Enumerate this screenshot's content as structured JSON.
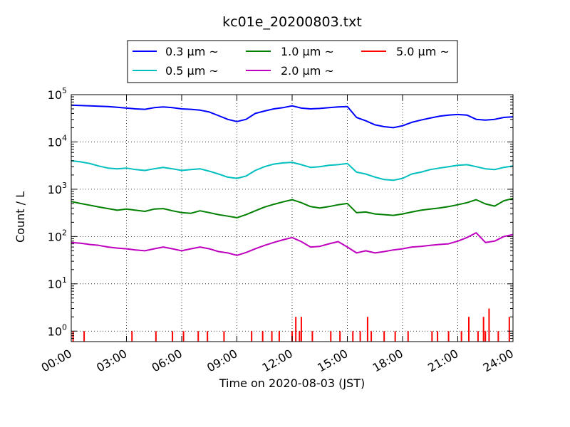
{
  "chart_data": {
    "type": "line",
    "title": "kc01e_20200803.txt",
    "xlabel": "Time on 2020-08-03 (JST)",
    "ylabel": "Count / L",
    "y_scale": "log",
    "ylim": [
      0.6,
      100000
    ],
    "xlim": [
      "00:00",
      "24:00"
    ],
    "x_ticks": [
      "00:00",
      "03:00",
      "06:00",
      "09:00",
      "12:00",
      "15:00",
      "18:00",
      "21:00",
      "24:00"
    ],
    "y_ticks": [
      {
        "value": 1,
        "base": "10",
        "exp": "0"
      },
      {
        "value": 10,
        "base": "10",
        "exp": "1"
      },
      {
        "value": 100,
        "base": "10",
        "exp": "2"
      },
      {
        "value": 1000,
        "base": "10",
        "exp": "3"
      },
      {
        "value": 10000,
        "base": "10",
        "exp": "4"
      },
      {
        "value": 100000,
        "base": "10",
        "exp": "5"
      }
    ],
    "grid": true,
    "legend_position": "top",
    "x_hours": [
      0,
      0.5,
      1,
      1.5,
      2,
      2.5,
      3,
      3.5,
      4,
      4.5,
      5,
      5.5,
      6,
      6.5,
      7,
      7.5,
      8,
      8.5,
      9,
      9.5,
      10,
      10.5,
      11,
      11.5,
      12,
      12.5,
      13,
      13.5,
      14,
      14.5,
      15,
      15.5,
      16,
      16.5,
      17,
      17.5,
      18,
      18.5,
      19,
      19.5,
      20,
      20.5,
      21,
      21.5,
      22,
      22.5,
      23,
      23.5,
      24
    ],
    "series": [
      {
        "name": "0.3 μm ~",
        "color": "#0000ff",
        "values": [
          60000,
          59000,
          58000,
          57000,
          56000,
          54000,
          52000,
          50000,
          49000,
          53000,
          55000,
          53000,
          50000,
          49000,
          47000,
          43000,
          36000,
          30000,
          27000,
          30000,
          40000,
          45000,
          50000,
          53000,
          58000,
          52000,
          50000,
          51000,
          53000,
          55000,
          56000,
          33000,
          28000,
          23000,
          21000,
          20000,
          22000,
          26000,
          29000,
          32000,
          35000,
          37000,
          38000,
          37000,
          30000,
          29000,
          30000,
          33000,
          34000
        ]
      },
      {
        "name": "0.5 μm ~",
        "color": "#00bfbf",
        "values": [
          4000,
          3800,
          3500,
          3100,
          2800,
          2700,
          2800,
          2600,
          2500,
          2700,
          2900,
          2700,
          2500,
          2600,
          2700,
          2400,
          2100,
          1800,
          1700,
          1900,
          2500,
          3000,
          3400,
          3600,
          3700,
          3300,
          2900,
          3000,
          3200,
          3300,
          3500,
          2300,
          2100,
          1800,
          1600,
          1550,
          1700,
          2100,
          2300,
          2600,
          2800,
          3000,
          3200,
          3300,
          3000,
          2700,
          2600,
          2900,
          3100
        ]
      },
      {
        "name": "1.0 μm ~",
        "color": "#008000",
        "values": [
          550,
          500,
          460,
          420,
          390,
          360,
          380,
          360,
          340,
          380,
          390,
          350,
          320,
          310,
          350,
          320,
          290,
          270,
          250,
          290,
          350,
          420,
          480,
          540,
          600,
          520,
          430,
          400,
          430,
          470,
          500,
          320,
          330,
          300,
          290,
          280,
          300,
          330,
          360,
          380,
          400,
          430,
          470,
          520,
          600,
          490,
          440,
          570,
          640
        ]
      },
      {
        "name": "2.0 μm ~",
        "color": "#bf00bf",
        "values": [
          75,
          72,
          68,
          65,
          60,
          57,
          55,
          52,
          50,
          55,
          60,
          55,
          50,
          55,
          60,
          55,
          48,
          45,
          40,
          46,
          55,
          65,
          75,
          85,
          95,
          78,
          60,
          62,
          70,
          78,
          60,
          45,
          50,
          45,
          48,
          52,
          55,
          60,
          62,
          65,
          68,
          70,
          80,
          95,
          120,
          75,
          80,
          100,
          110
        ]
      },
      {
        "name": "5.0 μm ~",
        "color": "#ff0000",
        "values": []
      }
    ]
  },
  "legend_columns": [
    [
      "0.3 μm ~",
      "0.5 μm ~"
    ],
    [
      "1.0 μm ~",
      "2.0 μm ~"
    ],
    [
      "5.0 μm ~"
    ]
  ]
}
